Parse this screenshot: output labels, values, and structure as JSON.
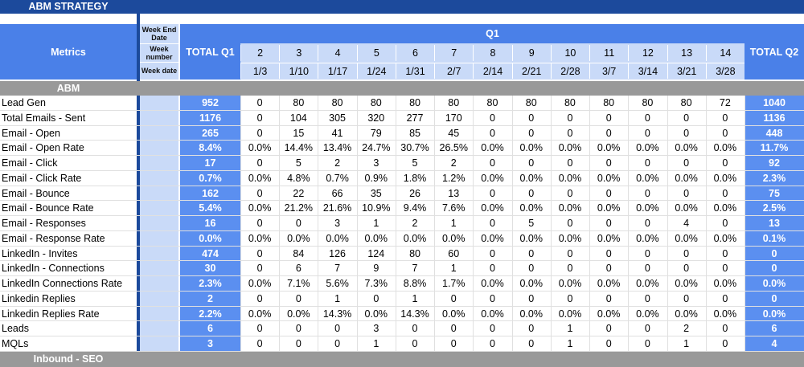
{
  "sheet_title": "ABM STRATEGY",
  "header": {
    "metrics": "Metrics",
    "week_end_date": "Week End Date",
    "week_number": "Week number",
    "week_date": "Week date",
    "total_q1": "TOTAL Q1",
    "total_q2": "TOTAL Q2",
    "quarter": "Q1",
    "weeks": [
      "2",
      "3",
      "4",
      "5",
      "6",
      "7",
      "8",
      "9",
      "10",
      "11",
      "12",
      "13",
      "14"
    ],
    "dates": [
      "1/3",
      "1/10",
      "1/17",
      "1/24",
      "1/31",
      "2/7",
      "2/14",
      "2/21",
      "2/28",
      "3/7",
      "3/14",
      "3/21",
      "3/28"
    ]
  },
  "sections": {
    "abm": "ABM",
    "inbound": "Inbound - SEO"
  },
  "rows": [
    {
      "label": "Lead Gen",
      "q1": "952",
      "weeks": [
        "0",
        "80",
        "80",
        "80",
        "80",
        "80",
        "80",
        "80",
        "80",
        "80",
        "80",
        "80",
        "72"
      ],
      "q2": "1040"
    },
    {
      "label": "Total Emails - Sent",
      "q1": "1176",
      "weeks": [
        "0",
        "104",
        "305",
        "320",
        "277",
        "170",
        "0",
        "0",
        "0",
        "0",
        "0",
        "0",
        "0"
      ],
      "q2": "1136"
    },
    {
      "label": "Email - Open",
      "q1": "265",
      "weeks": [
        "0",
        "15",
        "41",
        "79",
        "85",
        "45",
        "0",
        "0",
        "0",
        "0",
        "0",
        "0",
        "0"
      ],
      "q2": "448"
    },
    {
      "label": "Email - Open Rate",
      "q1": "8.4%",
      "weeks": [
        "0.0%",
        "14.4%",
        "13.4%",
        "24.7%",
        "30.7%",
        "26.5%",
        "0.0%",
        "0.0%",
        "0.0%",
        "0.0%",
        "0.0%",
        "0.0%",
        "0.0%"
      ],
      "q2": "11.7%"
    },
    {
      "label": "Email - Click",
      "q1": "17",
      "weeks": [
        "0",
        "5",
        "2",
        "3",
        "5",
        "2",
        "0",
        "0",
        "0",
        "0",
        "0",
        "0",
        "0"
      ],
      "q2": "92"
    },
    {
      "label": "Email - Click Rate",
      "q1": "0.7%",
      "weeks": [
        "0.0%",
        "4.8%",
        "0.7%",
        "0.9%",
        "1.8%",
        "1.2%",
        "0.0%",
        "0.0%",
        "0.0%",
        "0.0%",
        "0.0%",
        "0.0%",
        "0.0%"
      ],
      "q2": "2.3%"
    },
    {
      "label": "Email - Bounce",
      "q1": "162",
      "weeks": [
        "0",
        "22",
        "66",
        "35",
        "26",
        "13",
        "0",
        "0",
        "0",
        "0",
        "0",
        "0",
        "0"
      ],
      "q2": "75"
    },
    {
      "label": "Email - Bounce Rate",
      "q1": "5.4%",
      "weeks": [
        "0.0%",
        "21.2%",
        "21.6%",
        "10.9%",
        "9.4%",
        "7.6%",
        "0.0%",
        "0.0%",
        "0.0%",
        "0.0%",
        "0.0%",
        "0.0%",
        "0.0%"
      ],
      "q2": "2.5%"
    },
    {
      "label": "Email - Responses",
      "q1": "16",
      "weeks": [
        "0",
        "0",
        "3",
        "1",
        "2",
        "1",
        "0",
        "5",
        "0",
        "0",
        "0",
        "4",
        "0"
      ],
      "q2": "13"
    },
    {
      "label": "Email - Response Rate",
      "q1": "0.0%",
      "weeks": [
        "0.0%",
        "0.0%",
        "0.0%",
        "0.0%",
        "0.0%",
        "0.0%",
        "0.0%",
        "0.0%",
        "0.0%",
        "0.0%",
        "0.0%",
        "0.0%",
        "0.0%"
      ],
      "q2": "0.1%"
    },
    {
      "label": "LinkedIn  - Invites",
      "q1": "474",
      "weeks": [
        "0",
        "84",
        "126",
        "124",
        "80",
        "60",
        "0",
        "0",
        "0",
        "0",
        "0",
        "0",
        "0"
      ],
      "q2": "0"
    },
    {
      "label": "LinkedIn - Connections",
      "q1": "30",
      "weeks": [
        "0",
        "6",
        "7",
        "9",
        "7",
        "1",
        "0",
        "0",
        "0",
        "0",
        "0",
        "0",
        "0"
      ],
      "q2": "0"
    },
    {
      "label": "LinkedIn Connections Rate",
      "q1": "2.3%",
      "weeks": [
        "0.0%",
        "7.1%",
        "5.6%",
        "7.3%",
        "8.8%",
        "1.7%",
        "0.0%",
        "0.0%",
        "0.0%",
        "0.0%",
        "0.0%",
        "0.0%",
        "0.0%"
      ],
      "q2": "0.0%"
    },
    {
      "label": "Linkedin Replies",
      "q1": "2",
      "weeks": [
        "0",
        "0",
        "1",
        "0",
        "1",
        "0",
        "0",
        "0",
        "0",
        "0",
        "0",
        "0",
        "0"
      ],
      "q2": "0"
    },
    {
      "label": "Linkedin Replies Rate",
      "q1": "2.2%",
      "weeks": [
        "0.0%",
        "0.0%",
        "14.3%",
        "0.0%",
        "14.3%",
        "0.0%",
        "0.0%",
        "0.0%",
        "0.0%",
        "0.0%",
        "0.0%",
        "0.0%",
        "0.0%"
      ],
      "q2": "0.0%"
    },
    {
      "label": "Leads",
      "q1": "6",
      "weeks": [
        "0",
        "0",
        "0",
        "3",
        "0",
        "0",
        "0",
        "0",
        "1",
        "0",
        "0",
        "2",
        "0"
      ],
      "q2": "6"
    },
    {
      "label": "MQLs",
      "q1": "3",
      "weeks": [
        "0",
        "0",
        "0",
        "1",
        "0",
        "0",
        "0",
        "0",
        "1",
        "0",
        "0",
        "1",
        "0"
      ],
      "q2": "4"
    }
  ],
  "colors": {
    "title_bar": "#1c4a9c",
    "header_blue": "#4a80e8",
    "total_blue": "#5b8ff0",
    "week_header": "#c9daf8",
    "label_col": "#c9daf8",
    "section_gray": "#999999"
  }
}
